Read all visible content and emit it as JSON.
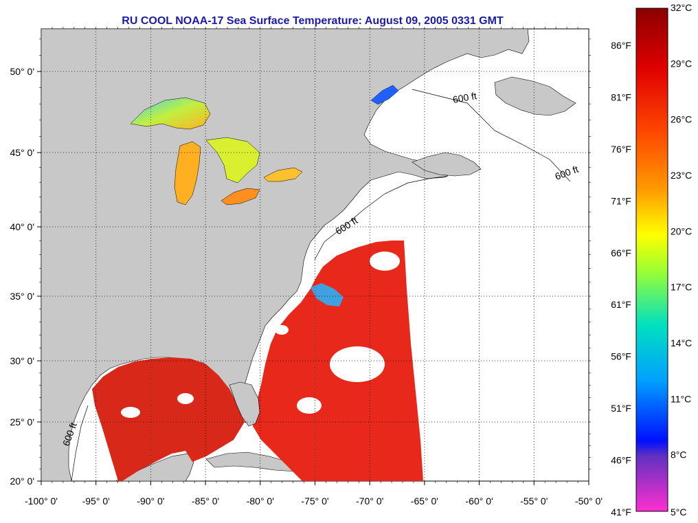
{
  "title": "RU COOL  NOAA-17  Sea Surface Temperature:  August 09, 2005 0331 GMT",
  "map": {
    "lon_ticks": [
      {
        "value": -100,
        "label": "-100° 0'"
      },
      {
        "value": -95,
        "label": "-95° 0'"
      },
      {
        "value": -90,
        "label": "-90° 0'"
      },
      {
        "value": -85,
        "label": "-85° 0'"
      },
      {
        "value": -80,
        "label": "-80° 0'"
      },
      {
        "value": -75,
        "label": "-75° 0'"
      },
      {
        "value": -70,
        "label": "-70° 0'"
      },
      {
        "value": -65,
        "label": "-65° 0'"
      },
      {
        "value": -60,
        "label": "-60° 0'"
      },
      {
        "value": -55,
        "label": "-55° 0'"
      },
      {
        "value": -50,
        "label": "-50° 0'"
      }
    ],
    "lat_ticks": [
      {
        "value": 20,
        "label": "20° 0'"
      },
      {
        "value": 25,
        "label": "25° 0'"
      },
      {
        "value": 30,
        "label": "30° 0'"
      },
      {
        "value": 35,
        "label": "35° 0'"
      },
      {
        "value": 40,
        "label": "40° 0'"
      },
      {
        "value": 45,
        "label": "45° 0'"
      },
      {
        "value": 50,
        "label": "50° 0'"
      }
    ],
    "contour_label": "600 ft",
    "colors": {
      "land": "#c8c8c8",
      "ocean_nodata": "#ffffff",
      "warm_water": "#e8281a"
    }
  },
  "colorbar": {
    "celsius": [
      "32°C",
      "29°C",
      "26°C",
      "23°C",
      "20°C",
      "17°C",
      "14°C",
      "11°C",
      "8°C",
      "5°C"
    ],
    "fahrenheit": [
      "86°F",
      "81°F",
      "76°F",
      "71°F",
      "66°F",
      "61°F",
      "56°F",
      "51°F",
      "46°F",
      "41°F"
    ],
    "colors_top_to_bottom": [
      "#8b0000",
      "#e00000",
      "#ff4000",
      "#ff9000",
      "#ffff00",
      "#80ff40",
      "#00e0c0",
      "#00a0ff",
      "#0020ff",
      "#8040c0",
      "#ff30d0"
    ]
  }
}
